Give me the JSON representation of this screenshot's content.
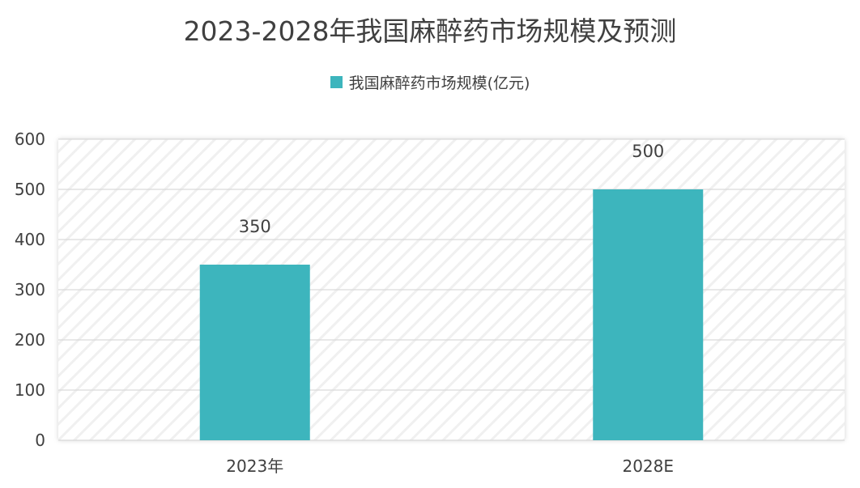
{
  "chart_data": {
    "type": "bar",
    "title": "2023-2028年我国麻醉药市场规模及预测",
    "categories": [
      "2023年",
      "2028E"
    ],
    "series": [
      {
        "name": "我国麻醉药市场规模(亿元)",
        "values": [
          350,
          500
        ]
      }
    ],
    "data_labels": [
      "350",
      "500"
    ],
    "ylim": [
      0,
      600
    ],
    "yticks": [
      0,
      100,
      200,
      300,
      400,
      500,
      600
    ],
    "ytick_labels": [
      "0",
      "100",
      "200",
      "300",
      "400",
      "500",
      "600"
    ],
    "legend_position": "top-center",
    "grid": true,
    "colors": {
      "bar": "#3db5bd",
      "grid": "#d9d9d9",
      "hatch": "#f0f0f0",
      "text": "#404040"
    }
  }
}
